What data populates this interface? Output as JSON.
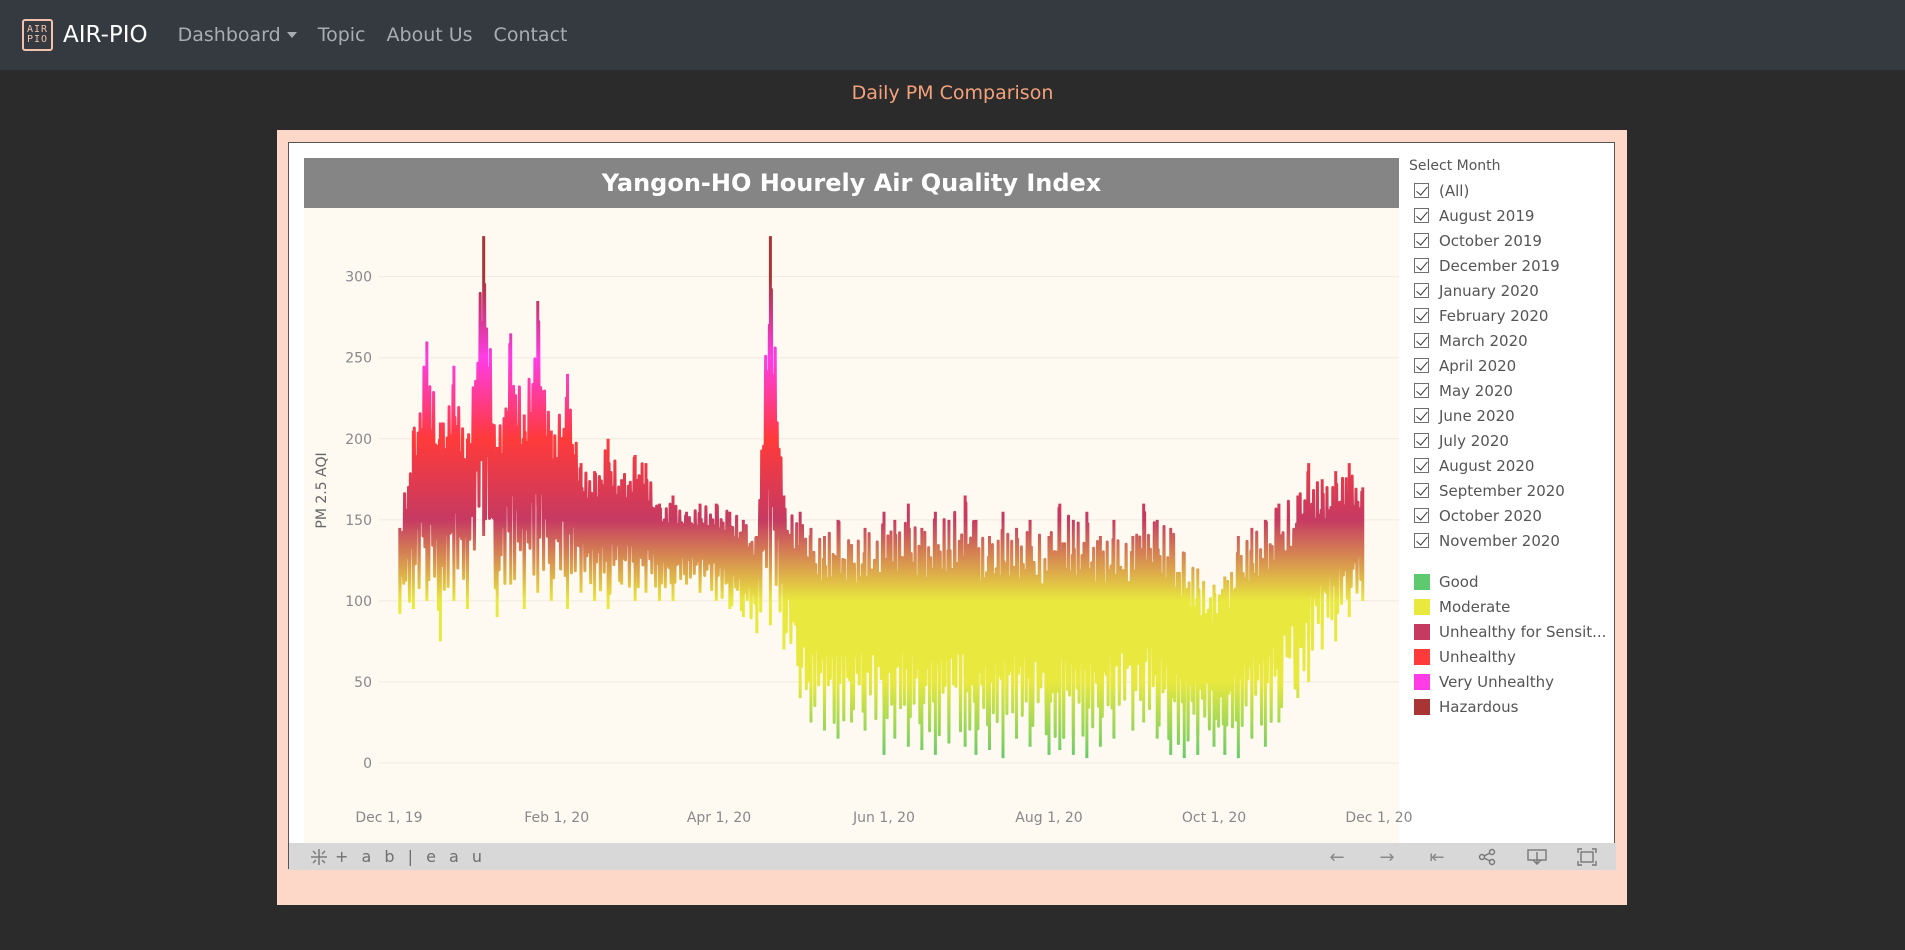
{
  "nav": {
    "brand_logo_top": "AIR",
    "brand_logo_bottom": "PIO",
    "brand_name": "AIR-PIO",
    "links": [
      "Dashboard",
      "Topic",
      "About Us",
      "Contact"
    ]
  },
  "page_heading": "Daily PM Comparison",
  "chart_data": {
    "type": "line",
    "title": "Yangon-HO Hourely Air Quality Index",
    "ylabel": "PM 2.5 AQI",
    "xlabel": "",
    "ylim": [
      0,
      330
    ],
    "y_ticks": [
      0,
      50,
      100,
      150,
      200,
      250,
      300
    ],
    "x_ticks": [
      "Dec 1, 19",
      "Feb 1, 20",
      "Apr 1, 20",
      "Jun 1, 20",
      "Aug 1, 20",
      "Oct 1, 20",
      "Dec 1, 20"
    ],
    "xlim": [
      "2019-12-01",
      "2020-12-01"
    ],
    "grid": true,
    "series": [
      {
        "x": [
          "2019-12-05",
          "2019-12-10",
          "2019-12-15",
          "2019-12-20",
          "2019-12-25",
          "2019-12-30",
          "2020-01-05",
          "2020-01-10",
          "2020-01-15",
          "2020-01-20",
          "2020-01-25",
          "2020-01-30",
          "2020-02-05",
          "2020-02-10",
          "2020-02-15",
          "2020-02-20",
          "2020-02-25",
          "2020-03-01",
          "2020-03-05",
          "2020-03-10",
          "2020-03-15",
          "2020-03-20",
          "2020-03-25",
          "2020-03-31",
          "2020-04-05",
          "2020-04-10",
          "2020-04-15",
          "2020-04-20",
          "2020-04-25",
          "2020-05-01",
          "2020-05-05",
          "2020-05-10",
          "2020-05-15",
          "2020-05-20",
          "2020-05-25",
          "2020-06-01",
          "2020-06-05",
          "2020-06-10",
          "2020-06-15",
          "2020-06-20",
          "2020-06-25",
          "2020-07-01",
          "2020-07-05",
          "2020-07-10",
          "2020-07-15",
          "2020-07-20",
          "2020-07-25",
          "2020-08-01",
          "2020-08-05",
          "2020-08-10",
          "2020-08-15",
          "2020-08-20",
          "2020-08-25",
          "2020-09-01",
          "2020-09-05",
          "2020-09-10",
          "2020-09-15",
          "2020-09-20",
          "2020-09-25",
          "2020-10-01",
          "2020-10-05",
          "2020-10-10",
          "2020-10-15",
          "2020-10-20",
          "2020-10-25",
          "2020-11-01",
          "2020-11-05",
          "2020-11-10",
          "2020-11-15",
          "2020-11-20",
          "2020-11-25"
        ],
        "low": [
          92,
          95,
          100,
          75,
          100,
          95,
          140,
          90,
          110,
          95,
          105,
          100,
          95,
          105,
          100,
          95,
          110,
          100,
          105,
          100,
          100,
          110,
          105,
          100,
          95,
          90,
          80,
          85,
          70,
          40,
          25,
          20,
          15,
          25,
          20,
          5,
          15,
          10,
          8,
          5,
          12,
          10,
          5,
          8,
          3,
          15,
          10,
          5,
          8,
          5,
          3,
          10,
          15,
          20,
          25,
          15,
          5,
          3,
          5,
          10,
          5,
          3,
          15,
          10,
          25,
          40,
          50,
          70,
          75,
          90,
          100
        ],
        "high": [
          145,
          205,
          260,
          210,
          245,
          200,
          325,
          195,
          265,
          215,
          285,
          205,
          240,
          185,
          180,
          200,
          175,
          190,
          185,
          160,
          165,
          155,
          160,
          160,
          155,
          150,
          140,
          325,
          165,
          155,
          145,
          140,
          150,
          135,
          145,
          155,
          150,
          160,
          145,
          155,
          150,
          165,
          150,
          140,
          155,
          145,
          150,
          140,
          160,
          150,
          155,
          140,
          150,
          140,
          160,
          150,
          145,
          130,
          120,
          110,
          115,
          140,
          145,
          150,
          160,
          165,
          185,
          175,
          180,
          185,
          170
        ]
      }
    ]
  },
  "filter": {
    "title": "Select Month",
    "items": [
      "(All)",
      "August 2019",
      "October 2019",
      "December 2019",
      "January 2020",
      "February 2020",
      "March 2020",
      "April 2020",
      "May 2020",
      "June 2020",
      "July 2020",
      "August 2020",
      "September 2020",
      "October 2020",
      "November 2020"
    ]
  },
  "legend": {
    "items": [
      {
        "label": "Good",
        "color": "#5ec96e"
      },
      {
        "label": "Moderate",
        "color": "#e9e83e"
      },
      {
        "label": "Unhealthy for Sensit...",
        "color": "#c63a62"
      },
      {
        "label": "Unhealthy",
        "color": "#ff3a3a"
      },
      {
        "label": "Very Unhealthy",
        "color": "#ff3ce6"
      },
      {
        "label": "Hazardous",
        "color": "#a83434"
      }
    ]
  },
  "toolbar": {
    "logo_text": "+ a b | e a u",
    "icons": [
      "undo-icon",
      "redo-icon",
      "revert-icon",
      "share-icon",
      "download-icon",
      "fullscreen-icon"
    ]
  }
}
